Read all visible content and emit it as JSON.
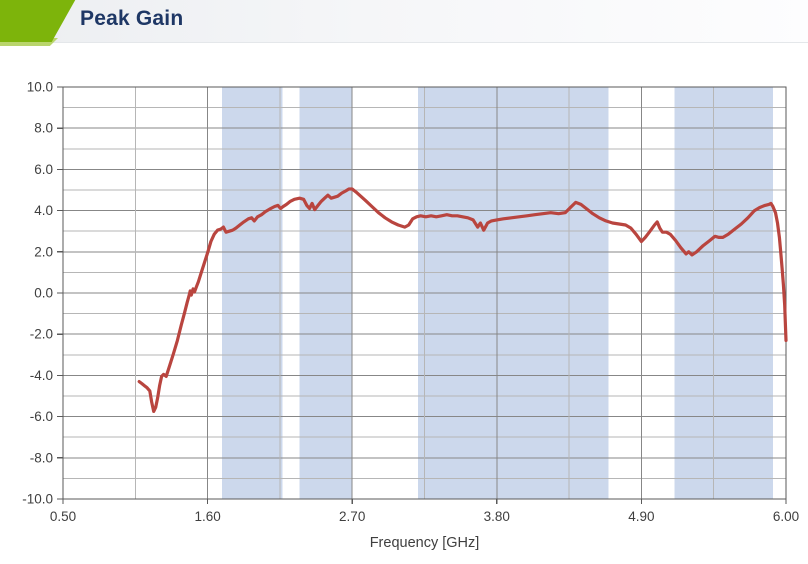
{
  "header": {
    "title": "Peak Gain",
    "accent_color": "#7db40b",
    "accent_light_color": "#b9d56c",
    "title_color": "#1e3765"
  },
  "chart_data": {
    "type": "line",
    "title": "Peak Gain",
    "xlabel": "Frequency [GHz]",
    "ylabel": "",
    "xlim": [
      0.5,
      6.0
    ],
    "ylim": [
      -10,
      10
    ],
    "grid": true,
    "legend": "none",
    "x_ticks": [
      0.5,
      1.6,
      2.7,
      3.8,
      4.9,
      6.0
    ],
    "x_tick_labels": [
      "0.50",
      "1.60",
      "2.70",
      "3.80",
      "4.90",
      "6.00"
    ],
    "x_minor_step": 0.55,
    "y_minor_step": 1.0,
    "y_major_step": 2.0,
    "y_ticks": [
      10,
      8,
      6,
      4,
      2,
      0,
      -2,
      -4,
      -6,
      -8,
      -10
    ],
    "y_tick_labels": [
      "10.0",
      "8.0",
      "6.0",
      "4.0",
      "2.0",
      "0.0",
      "-2.0",
      "-4.0",
      "-6.0",
      "-8.0",
      "-10.0"
    ],
    "shaded_bands": [
      {
        "from": 1.71,
        "to": 2.17
      },
      {
        "from": 2.3,
        "to": 2.7
      },
      {
        "from": 3.2,
        "to": 4.65
      },
      {
        "from": 5.15,
        "to": 5.9
      }
    ],
    "colors": {
      "band_fill": "#ccd8ec",
      "curve": "#b9453f",
      "grid_minor": "#b6b6b6",
      "grid_major": "#878787",
      "border": "#5a5a5a",
      "text": "#3f3f3f"
    },
    "series": [
      {
        "name": "Peak Gain",
        "color": "#b9453f",
        "points": [
          [
            1.08,
            -4.3
          ],
          [
            1.1,
            -4.4
          ],
          [
            1.12,
            -4.5
          ],
          [
            1.14,
            -4.6
          ],
          [
            1.16,
            -4.75
          ],
          [
            1.175,
            -5.3
          ],
          [
            1.19,
            -5.75
          ],
          [
            1.205,
            -5.55
          ],
          [
            1.22,
            -5.1
          ],
          [
            1.235,
            -4.5
          ],
          [
            1.25,
            -4.05
          ],
          [
            1.265,
            -3.95
          ],
          [
            1.285,
            -4.05
          ],
          [
            1.31,
            -3.55
          ],
          [
            1.34,
            -2.95
          ],
          [
            1.37,
            -2.3
          ],
          [
            1.4,
            -1.55
          ],
          [
            1.425,
            -0.95
          ],
          [
            1.445,
            -0.45
          ],
          [
            1.46,
            -0.1
          ],
          [
            1.468,
            0.1
          ],
          [
            1.476,
            -0.1
          ],
          [
            1.49,
            0.2
          ],
          [
            1.5,
            0.05
          ],
          [
            1.515,
            0.3
          ],
          [
            1.53,
            0.55
          ],
          [
            1.55,
            0.95
          ],
          [
            1.575,
            1.45
          ],
          [
            1.6,
            1.95
          ],
          [
            1.625,
            2.5
          ],
          [
            1.65,
            2.85
          ],
          [
            1.675,
            3.05
          ],
          [
            1.7,
            3.1
          ],
          [
            1.72,
            3.2
          ],
          [
            1.74,
            2.95
          ],
          [
            1.765,
            3.0
          ],
          [
            1.79,
            3.05
          ],
          [
            1.815,
            3.15
          ],
          [
            1.845,
            3.3
          ],
          [
            1.875,
            3.45
          ],
          [
            1.91,
            3.6
          ],
          [
            1.935,
            3.65
          ],
          [
            1.955,
            3.5
          ],
          [
            1.98,
            3.7
          ],
          [
            2.01,
            3.8
          ],
          [
            2.04,
            3.95
          ],
          [
            2.08,
            4.1
          ],
          [
            2.11,
            4.2
          ],
          [
            2.135,
            4.25
          ],
          [
            2.155,
            4.1
          ],
          [
            2.175,
            4.2
          ],
          [
            2.2,
            4.3
          ],
          [
            2.23,
            4.45
          ],
          [
            2.26,
            4.55
          ],
          [
            2.3,
            4.6
          ],
          [
            2.33,
            4.55
          ],
          [
            2.355,
            4.25
          ],
          [
            2.375,
            4.1
          ],
          [
            2.395,
            4.35
          ],
          [
            2.415,
            4.05
          ],
          [
            2.44,
            4.25
          ],
          [
            2.465,
            4.45
          ],
          [
            2.49,
            4.6
          ],
          [
            2.515,
            4.75
          ],
          [
            2.54,
            4.6
          ],
          [
            2.565,
            4.65
          ],
          [
            2.59,
            4.7
          ],
          [
            2.62,
            4.85
          ],
          [
            2.65,
            4.95
          ],
          [
            2.675,
            5.05
          ],
          [
            2.7,
            5.05
          ],
          [
            2.73,
            4.9
          ],
          [
            2.765,
            4.7
          ],
          [
            2.8,
            4.5
          ],
          [
            2.85,
            4.2
          ],
          [
            2.9,
            3.9
          ],
          [
            2.95,
            3.65
          ],
          [
            3.0,
            3.45
          ],
          [
            3.05,
            3.3
          ],
          [
            3.1,
            3.2
          ],
          [
            3.13,
            3.3
          ],
          [
            3.16,
            3.6
          ],
          [
            3.19,
            3.7
          ],
          [
            3.22,
            3.75
          ],
          [
            3.26,
            3.7
          ],
          [
            3.3,
            3.75
          ],
          [
            3.34,
            3.7
          ],
          [
            3.38,
            3.75
          ],
          [
            3.42,
            3.8
          ],
          [
            3.46,
            3.75
          ],
          [
            3.5,
            3.75
          ],
          [
            3.54,
            3.7
          ],
          [
            3.58,
            3.65
          ],
          [
            3.62,
            3.55
          ],
          [
            3.655,
            3.2
          ],
          [
            3.675,
            3.4
          ],
          [
            3.7,
            3.05
          ],
          [
            3.73,
            3.4
          ],
          [
            3.76,
            3.5
          ],
          [
            3.8,
            3.55
          ],
          [
            3.85,
            3.6
          ],
          [
            3.91,
            3.65
          ],
          [
            3.97,
            3.7
          ],
          [
            4.03,
            3.75
          ],
          [
            4.09,
            3.8
          ],
          [
            4.15,
            3.85
          ],
          [
            4.21,
            3.9
          ],
          [
            4.27,
            3.85
          ],
          [
            4.32,
            3.9
          ],
          [
            4.36,
            4.15
          ],
          [
            4.4,
            4.4
          ],
          [
            4.44,
            4.3
          ],
          [
            4.48,
            4.1
          ],
          [
            4.53,
            3.85
          ],
          [
            4.58,
            3.65
          ],
          [
            4.63,
            3.5
          ],
          [
            4.68,
            3.4
          ],
          [
            4.73,
            3.35
          ],
          [
            4.78,
            3.3
          ],
          [
            4.82,
            3.15
          ],
          [
            4.86,
            2.85
          ],
          [
            4.9,
            2.5
          ],
          [
            4.93,
            2.7
          ],
          [
            4.96,
            2.95
          ],
          [
            5.0,
            3.3
          ],
          [
            5.02,
            3.45
          ],
          [
            5.04,
            3.15
          ],
          [
            5.06,
            2.95
          ],
          [
            5.09,
            2.95
          ],
          [
            5.12,
            2.85
          ],
          [
            5.16,
            2.55
          ],
          [
            5.2,
            2.2
          ],
          [
            5.24,
            1.9
          ],
          [
            5.26,
            2.0
          ],
          [
            5.285,
            1.85
          ],
          [
            5.32,
            2.0
          ],
          [
            5.37,
            2.3
          ],
          [
            5.42,
            2.55
          ],
          [
            5.46,
            2.75
          ],
          [
            5.49,
            2.7
          ],
          [
            5.52,
            2.7
          ],
          [
            5.56,
            2.85
          ],
          [
            5.61,
            3.1
          ],
          [
            5.66,
            3.35
          ],
          [
            5.71,
            3.65
          ],
          [
            5.76,
            4.0
          ],
          [
            5.8,
            4.15
          ],
          [
            5.84,
            4.25
          ],
          [
            5.87,
            4.3
          ],
          [
            5.885,
            4.35
          ],
          [
            5.9,
            4.2
          ],
          [
            5.92,
            3.9
          ],
          [
            5.935,
            3.4
          ],
          [
            5.95,
            2.7
          ],
          [
            5.96,
            2.0
          ],
          [
            5.97,
            1.2
          ],
          [
            5.98,
            0.4
          ],
          [
            5.99,
            -0.6
          ],
          [
            5.995,
            -1.4
          ],
          [
            6.0,
            -2.3
          ]
        ]
      }
    ]
  }
}
